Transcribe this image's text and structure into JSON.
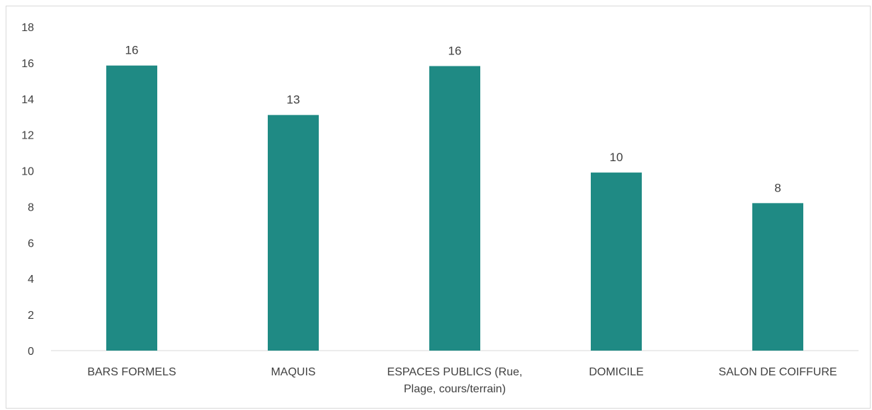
{
  "chart_data": {
    "type": "bar",
    "categories": [
      [
        "BARS FORMELS"
      ],
      [
        "MAQUIS"
      ],
      [
        "ESPACES PUBLICS (Rue,",
        "Plage, cours/terrain)"
      ],
      [
        "DOMICILE"
      ],
      [
        "SALON DE COIFFURE"
      ]
    ],
    "values": [
      15.85,
      13.1,
      15.82,
      9.9,
      8.2
    ],
    "data_labels": [
      "16",
      "13",
      "16",
      "10",
      "8"
    ],
    "ylim": [
      0,
      18
    ],
    "y_ticks": [
      0,
      2,
      4,
      6,
      8,
      10,
      12,
      14,
      16,
      18
    ],
    "grid": false,
    "legend": "none",
    "bar_color": "#1f8a84",
    "axis_color": "#d9d9d9"
  }
}
